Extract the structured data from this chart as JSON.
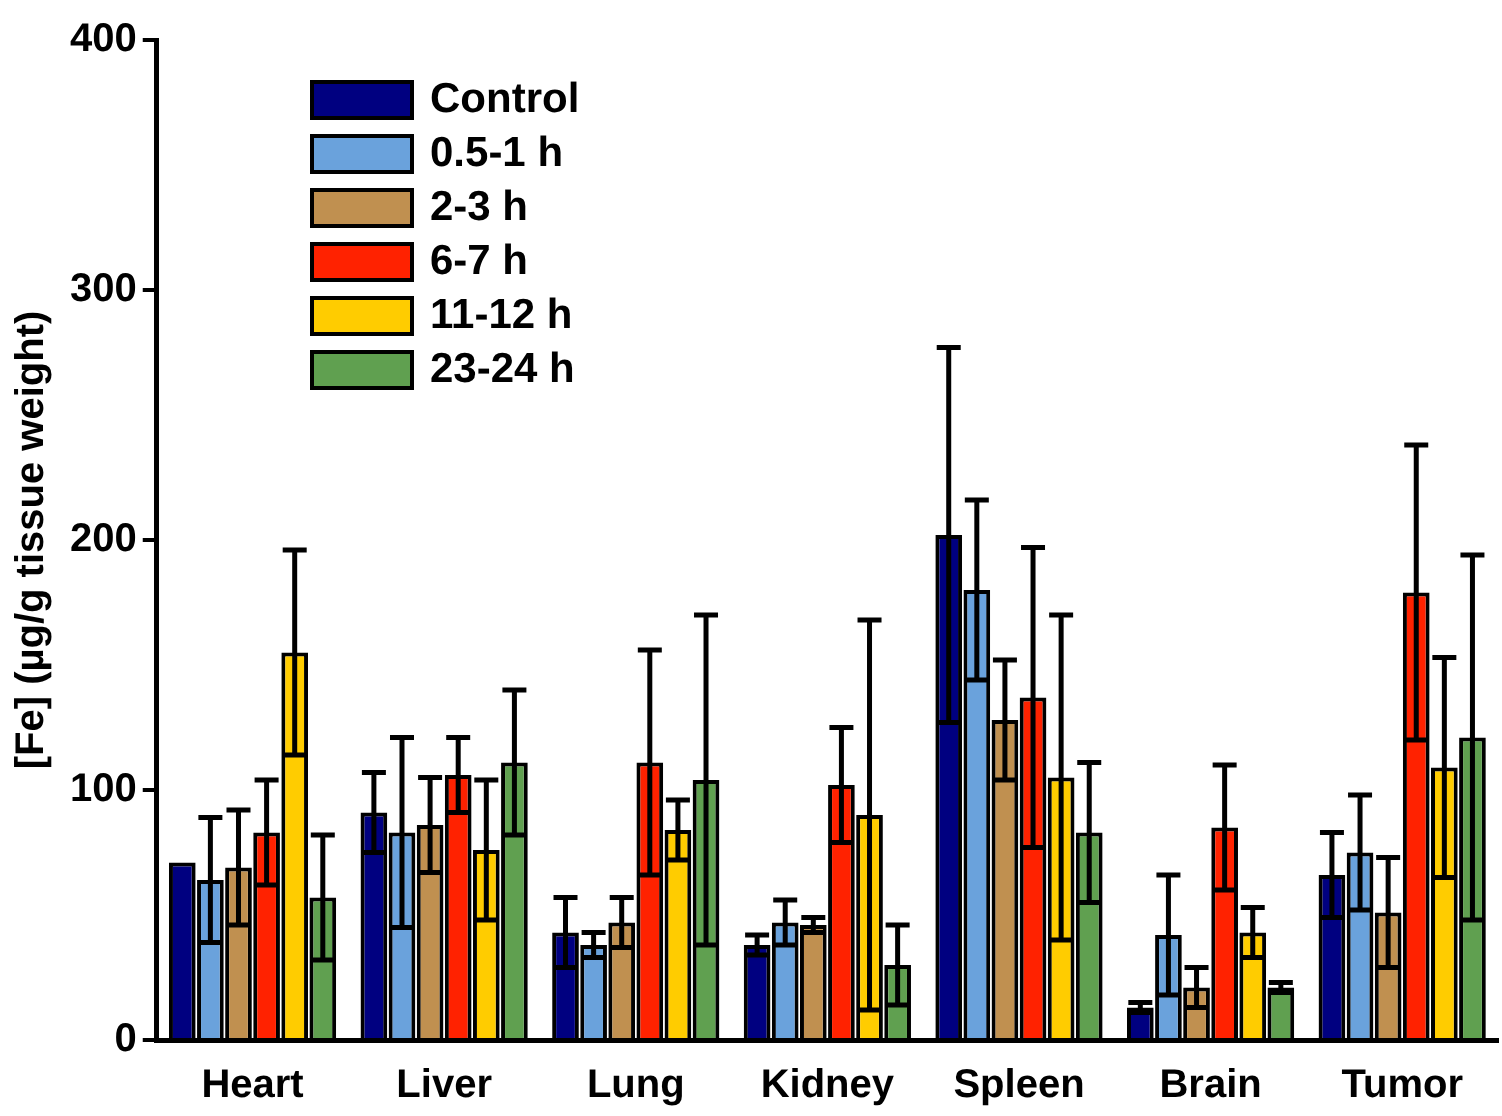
{
  "chart_data": {
    "type": "bar",
    "ylabel": "[Fe] (µg/g tissue weight)",
    "categories": [
      "Heart",
      "Liver",
      "Lung",
      "Kidney",
      "Spleen",
      "Brain",
      "Tumor"
    ],
    "series": [
      {
        "name": "Control",
        "color": "#000080",
        "values": [
          71,
          91,
          43,
          38,
          202,
          13,
          66
        ],
        "errors": [
          null,
          16,
          14,
          4,
          75,
          2,
          17
        ]
      },
      {
        "name": "0.5-1 h",
        "color": "#6aa2dc",
        "values": [
          64,
          83,
          38,
          47,
          180,
          42,
          75
        ],
        "errors": [
          25,
          38,
          5,
          9,
          36,
          24,
          23
        ]
      },
      {
        "name": "2-3 h",
        "color": "#c09050",
        "values": [
          69,
          86,
          47,
          46,
          128,
          21,
          51
        ],
        "errors": [
          23,
          19,
          10,
          3,
          24,
          8,
          22
        ]
      },
      {
        "name": "6-7 h",
        "color": "#ff2200",
        "values": [
          83,
          106,
          111,
          102,
          137,
          85,
          179
        ],
        "errors": [
          21,
          15,
          45,
          23,
          60,
          25,
          59
        ]
      },
      {
        "name": "11-12 h",
        "color": "#ffcc00",
        "values": [
          155,
          76,
          84,
          90,
          105,
          43,
          109
        ],
        "errors": [
          41,
          28,
          12,
          78,
          65,
          10,
          44
        ]
      },
      {
        "name": "23-24 h",
        "color": "#60a050",
        "values": [
          57,
          111,
          104,
          30,
          83,
          21,
          121
        ],
        "errors": [
          25,
          29,
          66,
          16,
          28,
          2,
          73
        ]
      }
    ],
    "ylim": [
      0,
      400
    ],
    "yticks": [
      0,
      100,
      200,
      300,
      400
    ],
    "grid": false,
    "legend": "top left"
  }
}
